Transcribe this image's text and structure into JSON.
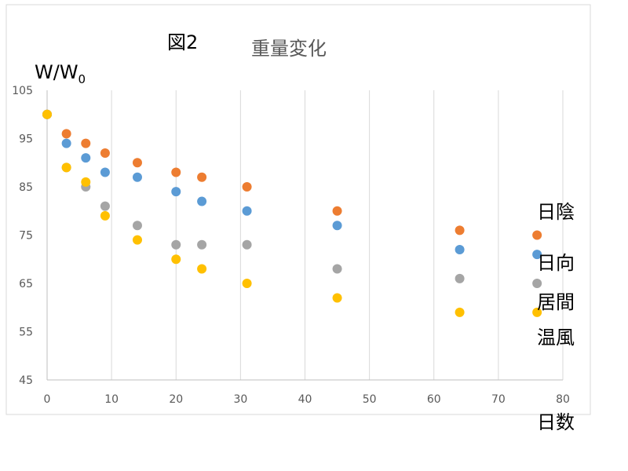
{
  "figure_label": "図2",
  "chart_data": {
    "type": "scatter",
    "title": "重量変化",
    "ylabel": "W/W",
    "ylabel_subscript": "0",
    "xlabel": "日数",
    "xlim": [
      0,
      80
    ],
    "ylim": [
      45,
      105
    ],
    "x_ticks": [
      0,
      10,
      20,
      30,
      40,
      50,
      60,
      70,
      80
    ],
    "y_ticks": [
      45,
      55,
      65,
      75,
      85,
      95,
      105
    ],
    "grid": "vertical",
    "legend": "right (labels beside last points)",
    "series": [
      {
        "name": "日陰",
        "color": "#ED7D31",
        "points": [
          [
            0,
            100
          ],
          [
            3,
            96
          ],
          [
            6,
            94
          ],
          [
            9,
            92
          ],
          [
            14,
            90
          ],
          [
            20,
            88
          ],
          [
            24,
            87
          ],
          [
            31,
            85
          ],
          [
            45,
            80
          ],
          [
            64,
            76
          ],
          [
            76,
            75
          ]
        ]
      },
      {
        "name": "日向",
        "color": "#5B9BD5",
        "points": [
          [
            0,
            100
          ],
          [
            3,
            94
          ],
          [
            6,
            91
          ],
          [
            9,
            88
          ],
          [
            14,
            87
          ],
          [
            20,
            84
          ],
          [
            24,
            82
          ],
          [
            31,
            80
          ],
          [
            45,
            77
          ],
          [
            64,
            72
          ],
          [
            76,
            71
          ]
        ]
      },
      {
        "name": "居間",
        "color": "#A5A5A5",
        "points": [
          [
            0,
            100
          ],
          [
            3,
            89
          ],
          [
            6,
            85
          ],
          [
            9,
            81
          ],
          [
            14,
            77
          ],
          [
            20,
            73
          ],
          [
            24,
            73
          ],
          [
            31,
            73
          ],
          [
            45,
            68
          ],
          [
            64,
            66
          ],
          [
            76,
            65
          ]
        ]
      },
      {
        "name": "温風",
        "color": "#FFC000",
        "points": [
          [
            0,
            100
          ],
          [
            3,
            89
          ],
          [
            6,
            86
          ],
          [
            9,
            79
          ],
          [
            14,
            74
          ],
          [
            20,
            70
          ],
          [
            24,
            68
          ],
          [
            31,
            65
          ],
          [
            45,
            62
          ],
          [
            64,
            59
          ],
          [
            76,
            59
          ]
        ]
      }
    ]
  }
}
